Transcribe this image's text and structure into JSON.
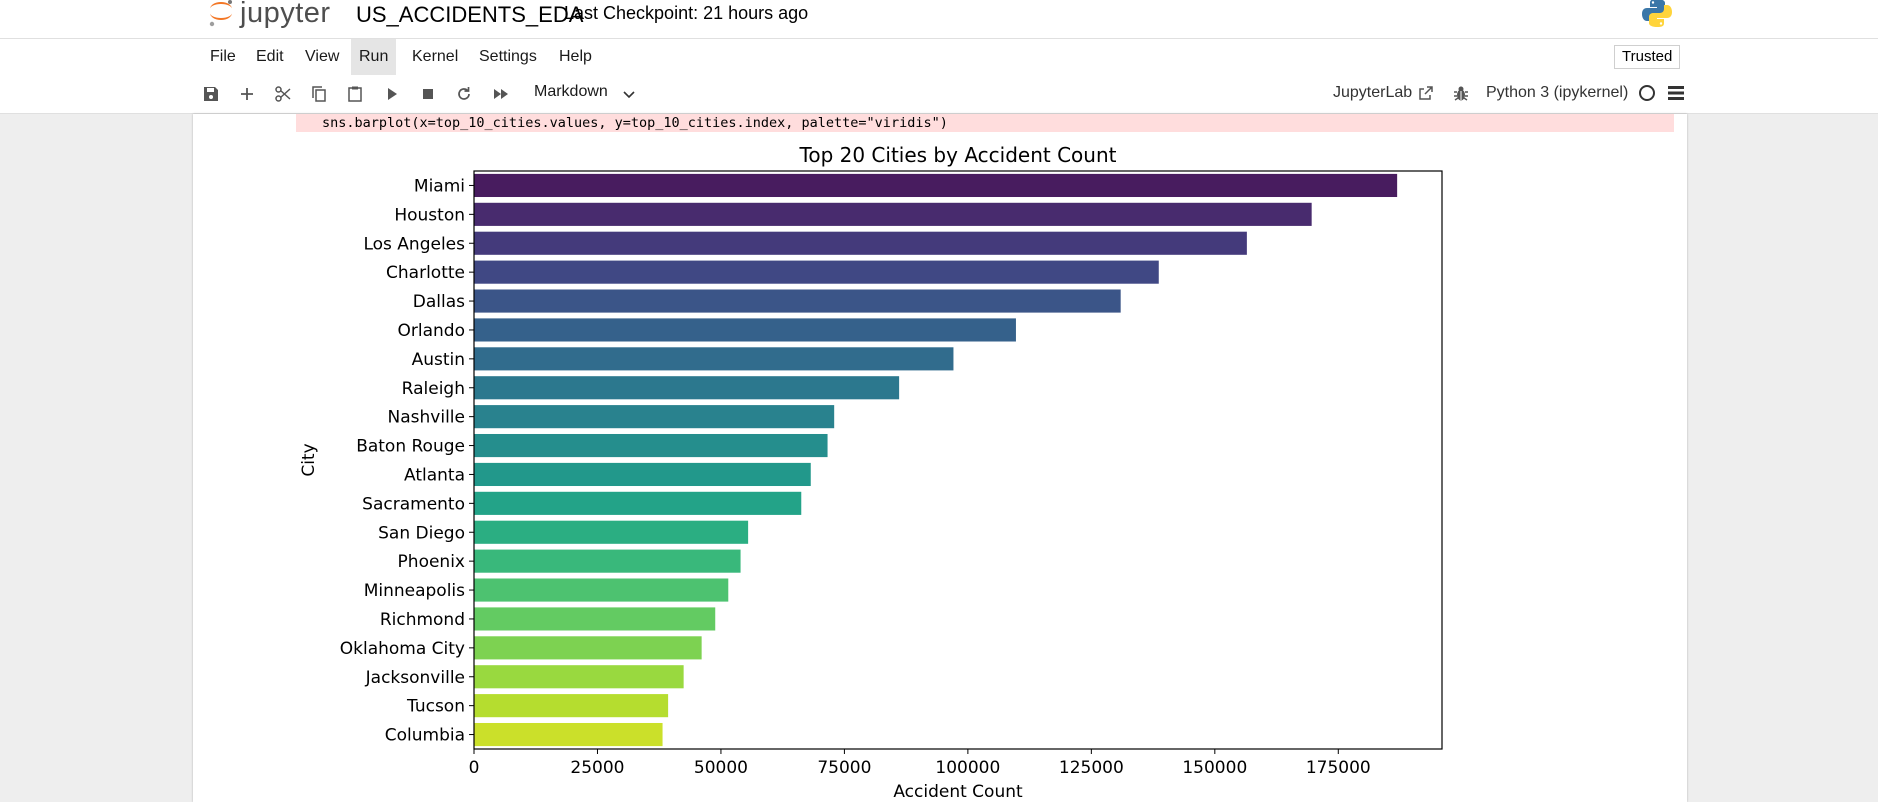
{
  "header": {
    "logo_text": "jupyter",
    "notebook_title": "US_ACCIDENTS_EDA",
    "checkpoint": "Last Checkpoint: 21 hours ago"
  },
  "menu": {
    "items": [
      "File",
      "Edit",
      "View",
      "Run",
      "Kernel",
      "Settings",
      "Help"
    ],
    "active": "Run",
    "trusted_label": "Trusted"
  },
  "toolbar": {
    "buttons": [
      "save-icon",
      "add-icon",
      "cut-icon",
      "copy-icon",
      "paste-icon",
      "run-icon",
      "stop-icon",
      "restart-icon",
      "fast-forward-icon"
    ],
    "cell_type": "Markdown",
    "jupyterlab_label": "JupyterLab",
    "kernel_name": "Python 3 (ipykernel)"
  },
  "output": {
    "stderr_line": "sns.barplot(x=top_10_cities.values, y=top_10_cities.index, palette=\"viridis\")"
  },
  "chart_data": {
    "type": "bar",
    "orientation": "horizontal",
    "title": "Top 20 Cities by Accident Count",
    "xlabel": "Accident Count",
    "ylabel": "City",
    "categories": [
      "Miami",
      "Houston",
      "Los Angeles",
      "Charlotte",
      "Dallas",
      "Orlando",
      "Austin",
      "Raleigh",
      "Nashville",
      "Baton Rouge",
      "Atlanta",
      "Sacramento",
      "San Diego",
      "Phoenix",
      "Minneapolis",
      "Richmond",
      "Oklahoma City",
      "Jacksonville",
      "Tucson",
      "Columbia"
    ],
    "values": [
      186917,
      169609,
      156491,
      138652,
      130939,
      109733,
      97079,
      86079,
      72930,
      71588,
      68186,
      66264,
      55504,
      53974,
      51488,
      48845,
      46092,
      42447,
      39304,
      38178
    ],
    "xticks": [
      "0",
      "25000",
      "50000",
      "75000",
      "100000",
      "125000",
      "150000",
      "175000"
    ],
    "xlim": [
      0,
      196000
    ],
    "palette": "viridis",
    "colors": [
      "#481c5f",
      "#482b6e",
      "#443a7b",
      "#404884",
      "#3b5588",
      "#35618b",
      "#316c8d",
      "#2c788e",
      "#29828e",
      "#258e8d",
      "#22988b",
      "#23a388",
      "#2bae82",
      "#39b87b",
      "#4dc270",
      "#63cb62",
      "#7dd251",
      "#99d93f",
      "#b5dd2f",
      "#cbe02a"
    ],
    "grid": false,
    "legend": "none"
  }
}
